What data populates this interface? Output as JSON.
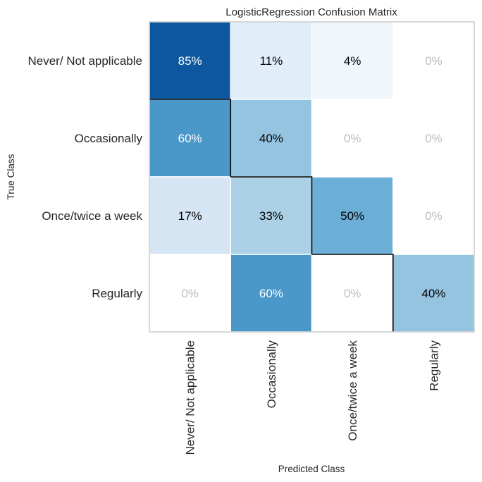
{
  "chart_data": {
    "type": "heatmap",
    "title": "LogisticRegression Confusion Matrix",
    "xlabel": "Predicted Class",
    "ylabel": "True Class",
    "x_categories": [
      "Never/ Not applicable",
      "Occasionally",
      "Once/twice a week",
      "Regularly"
    ],
    "y_categories": [
      "Never/ Not applicable",
      "Occasionally",
      "Once/twice a week",
      "Regularly"
    ],
    "values": [
      [
        85,
        11,
        4,
        0
      ],
      [
        60,
        40,
        0,
        0
      ],
      [
        17,
        33,
        50,
        0
      ],
      [
        0,
        60,
        0,
        40
      ]
    ],
    "value_suffix": "%",
    "colormap": "Blues",
    "zero_label_color": "#bdbdbd",
    "diagonal_outline": true,
    "grid": false
  }
}
